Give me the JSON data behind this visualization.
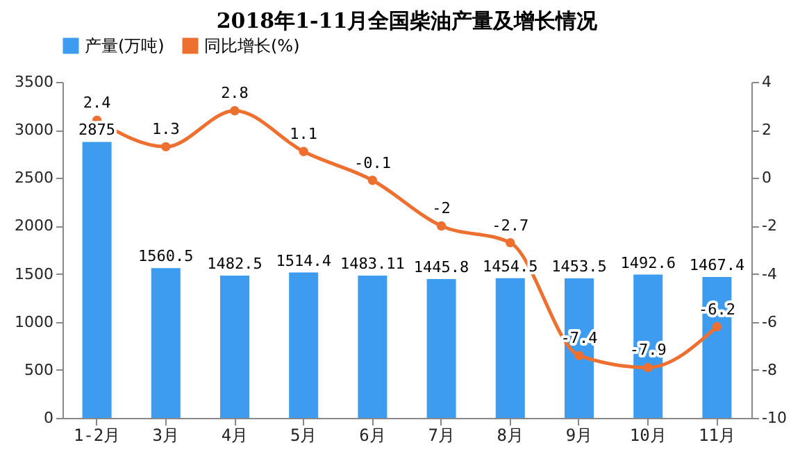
{
  "chart_data": {
    "type": "bar",
    "title": "2018年1-11月全国柴油产量及增长情况",
    "categories": [
      "1-2月",
      "3月",
      "4月",
      "5月",
      "6月",
      "7月",
      "8月",
      "9月",
      "10月",
      "11月"
    ],
    "series": [
      {
        "name": "产量(万吨)",
        "color": "#3d9cf0",
        "values": [
          2875,
          1560.5,
          1482.5,
          1514.4,
          1483.11,
          1445.8,
          1454.5,
          1453.5,
          1492.6,
          1467.4
        ]
      },
      {
        "name": "同比增长(%)",
        "type": "line",
        "axis": "y2",
        "color": "#ed7031",
        "values": [
          2.4,
          1.3,
          2.8,
          1.1,
          -0.1,
          -2,
          -2.7,
          -7.4,
          -7.9,
          -6.2
        ]
      }
    ],
    "ylim": [
      0,
      3500
    ],
    "yticks": [
      0,
      500,
      1000,
      1500,
      2000,
      2500,
      3000,
      3500
    ],
    "y2lim": [
      -10,
      4
    ],
    "y2ticks": [
      -10,
      -8,
      -6,
      -4,
      -2,
      0,
      2,
      4
    ],
    "data_labels": true,
    "legend": "top",
    "marker": "circle",
    "grid": false
  }
}
